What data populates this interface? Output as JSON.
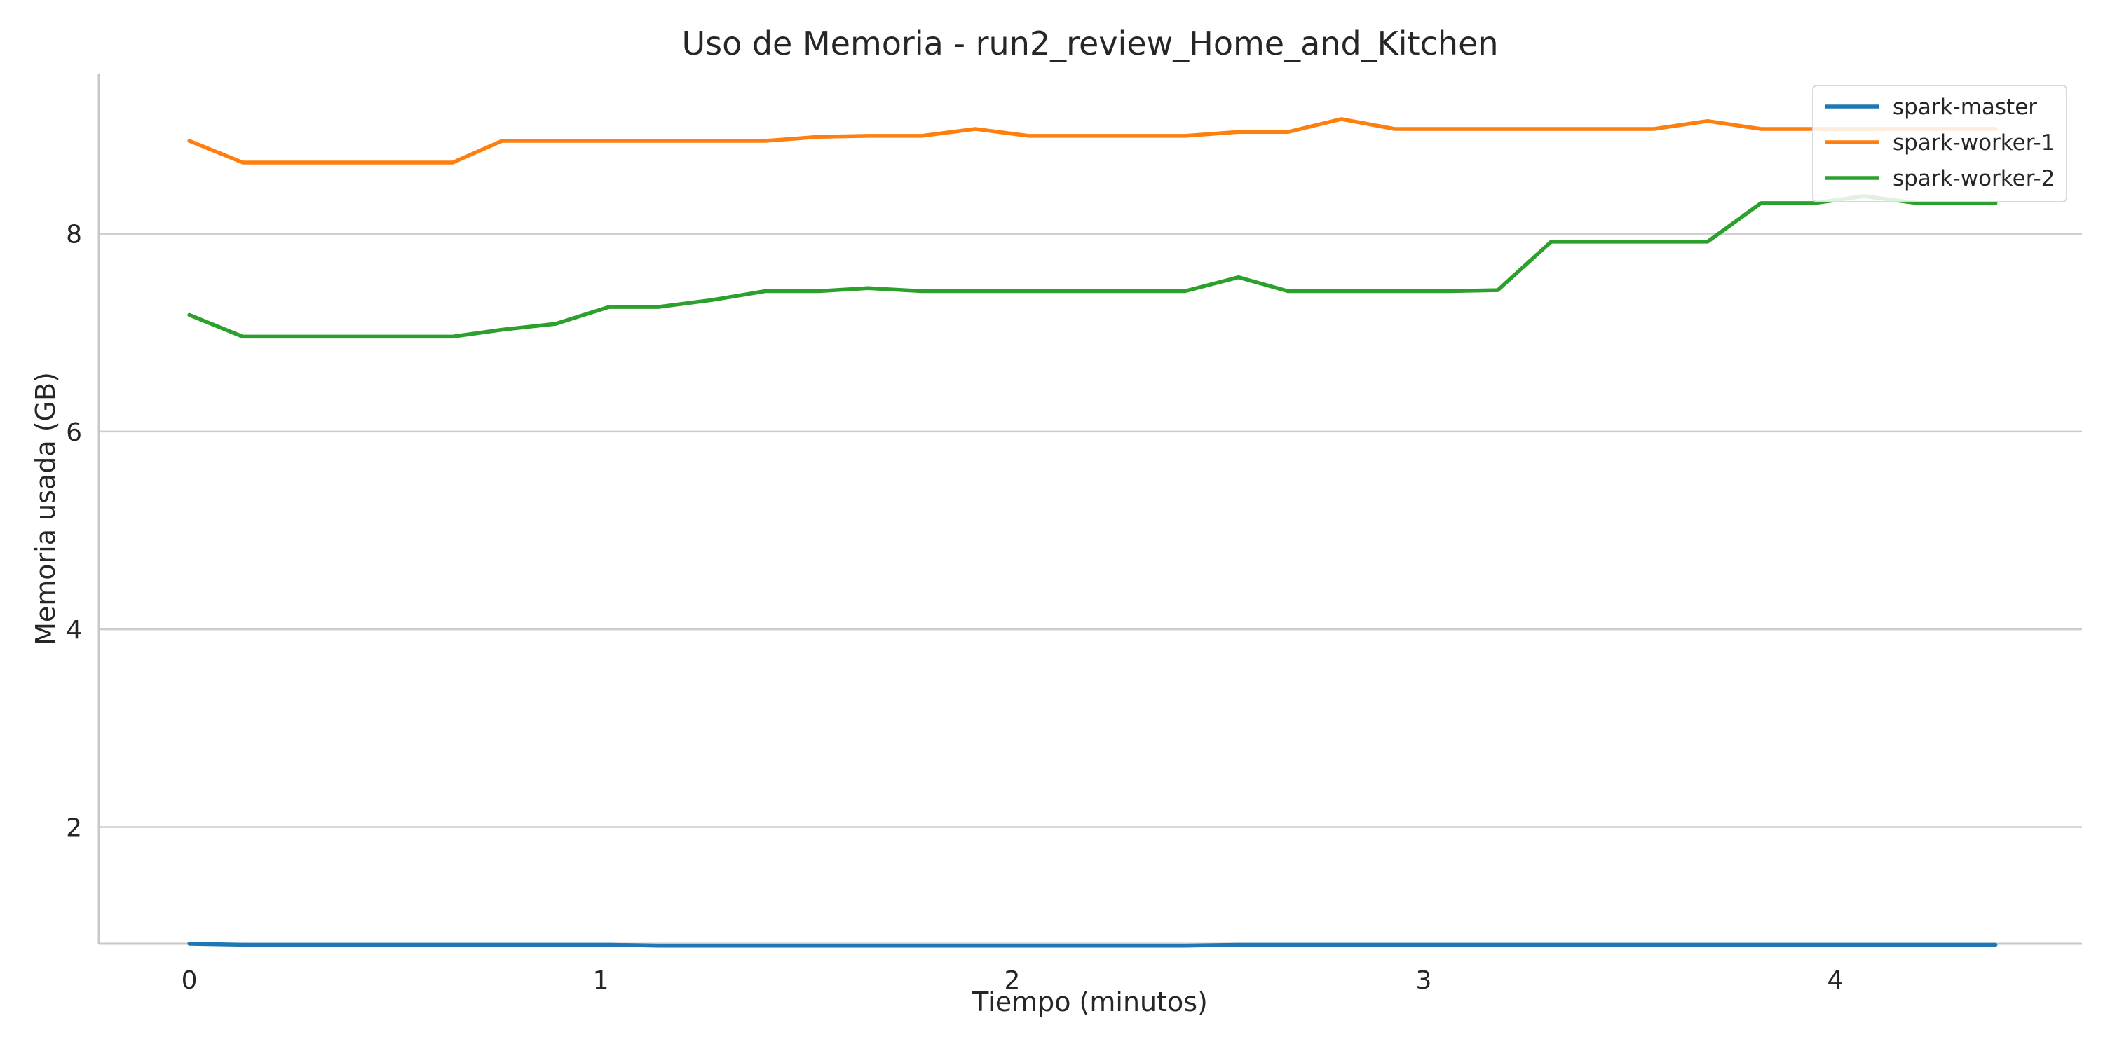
{
  "chart_data": {
    "type": "line",
    "title": "Uso de Memoria - run2_review_Home_and_Kitchen",
    "xlabel": "Tiempo (minutos)",
    "ylabel": "Memoria usada (GB)",
    "xlim": [
      -0.22,
      4.6
    ],
    "ylim": [
      0.82,
      9.62
    ],
    "xticks": [
      0,
      1,
      2,
      3,
      4
    ],
    "yticks": [
      2,
      4,
      6,
      8
    ],
    "x_tick_labels": [
      "0",
      "1",
      "2",
      "3",
      "4"
    ],
    "y_tick_labels": [
      "2",
      "4",
      "6",
      "8"
    ],
    "grid": "horizontal",
    "legend_position": "upper right",
    "x": [
      0,
      0.13,
      0.25,
      0.38,
      0.51,
      0.64,
      0.76,
      0.89,
      1.02,
      1.14,
      1.27,
      1.4,
      1.53,
      1.65,
      1.78,
      1.91,
      2.04,
      2.16,
      2.29,
      2.42,
      2.55,
      2.67,
      2.8,
      2.93,
      3.06,
      3.18,
      3.31,
      3.44,
      3.56,
      3.69,
      3.82,
      3.95,
      4.07,
      4.2,
      4.33,
      4.39
    ],
    "series": [
      {
        "name": "spark-master",
        "color": "#1f77b4",
        "values": [
          0.82,
          0.81,
          0.81,
          0.81,
          0.81,
          0.81,
          0.81,
          0.81,
          0.81,
          0.8,
          0.8,
          0.8,
          0.8,
          0.8,
          0.8,
          0.8,
          0.8,
          0.8,
          0.8,
          0.8,
          0.81,
          0.81,
          0.81,
          0.81,
          0.81,
          0.81,
          0.81,
          0.81,
          0.81,
          0.81,
          0.81,
          0.81,
          0.81,
          0.81,
          0.81,
          0.81
        ]
      },
      {
        "name": "spark-worker-1",
        "color": "#ff7f0e",
        "values": [
          8.94,
          8.72,
          8.72,
          8.72,
          8.72,
          8.72,
          8.94,
          8.94,
          8.94,
          8.94,
          8.94,
          8.94,
          8.98,
          8.99,
          8.99,
          9.06,
          8.99,
          8.99,
          8.99,
          8.99,
          9.03,
          9.03,
          9.16,
          9.06,
          9.06,
          9.06,
          9.06,
          9.06,
          9.06,
          9.14,
          9.06,
          9.06,
          9.06,
          9.06,
          9.06,
          9.06
        ]
      },
      {
        "name": "spark-worker-2",
        "color": "#2ca02c",
        "values": [
          7.18,
          6.96,
          6.96,
          6.96,
          6.96,
          6.96,
          7.03,
          7.09,
          7.26,
          7.26,
          7.33,
          7.42,
          7.42,
          7.45,
          7.42,
          7.42,
          7.42,
          7.42,
          7.42,
          7.42,
          7.56,
          7.42,
          7.42,
          7.42,
          7.42,
          7.43,
          7.92,
          7.92,
          7.92,
          7.92,
          8.31,
          8.31,
          8.38,
          8.31,
          8.31,
          8.31
        ]
      }
    ]
  }
}
